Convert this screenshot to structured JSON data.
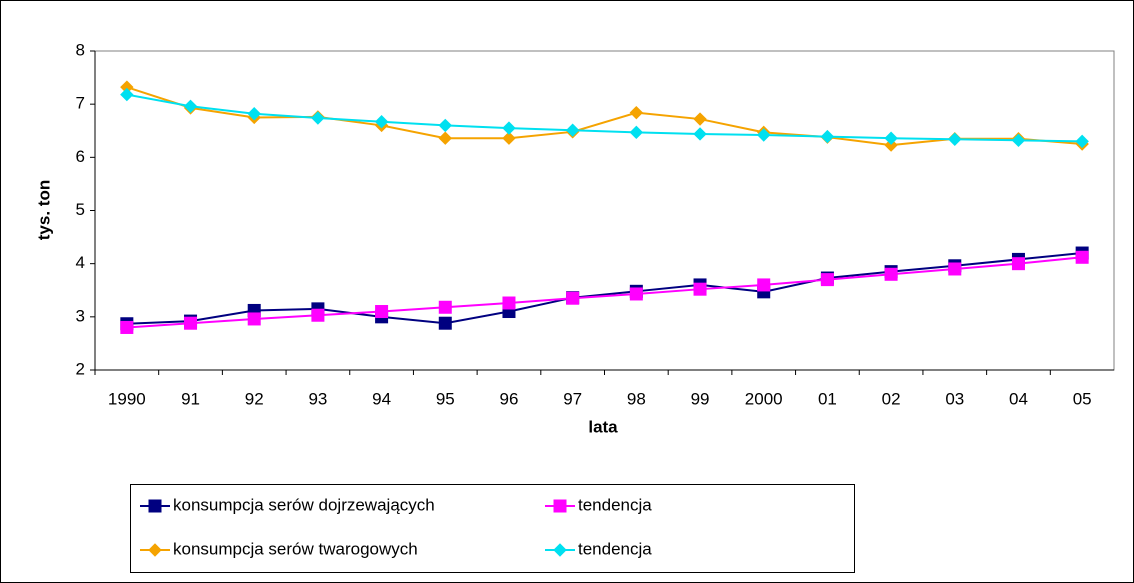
{
  "chart_data": {
    "type": "line",
    "xlabel": "lata",
    "ylabel": "tys. ton",
    "categories": [
      "1990",
      "91",
      "92",
      "93",
      "94",
      "95",
      "96",
      "97",
      "98",
      "99",
      "2000",
      "01",
      "02",
      "03",
      "04",
      "05"
    ],
    "ylim": [
      2,
      8
    ],
    "yticks": [
      2,
      3,
      4,
      5,
      6,
      7,
      8
    ],
    "grid": false,
    "series": [
      {
        "name": "konsumpcja serów dojrzewających",
        "color": "#000080",
        "marker": "square",
        "values": [
          2.87,
          2.92,
          3.12,
          3.15,
          3.0,
          2.88,
          3.1,
          3.36,
          3.48,
          3.6,
          3.47,
          3.73,
          3.85,
          3.96,
          4.08,
          4.2
        ]
      },
      {
        "name": "tendencja",
        "color": "#ff00ff",
        "marker": "square",
        "values": [
          2.8,
          2.88,
          2.96,
          3.03,
          3.1,
          3.18,
          3.26,
          3.35,
          3.43,
          3.52,
          3.6,
          3.7,
          3.8,
          3.9,
          4.0,
          4.12
        ]
      },
      {
        "name": "konsumpcja serów twarogowych",
        "color": "#f5a300",
        "marker": "diamond",
        "values": [
          7.32,
          6.93,
          6.75,
          6.76,
          6.6,
          6.36,
          6.36,
          6.48,
          6.84,
          6.72,
          6.47,
          6.38,
          6.23,
          6.35,
          6.35,
          6.25
        ]
      },
      {
        "name": "tendencja",
        "color": "#00e0f0",
        "marker": "diamond",
        "values": [
          7.18,
          6.96,
          6.82,
          6.74,
          6.67,
          6.6,
          6.55,
          6.51,
          6.47,
          6.44,
          6.42,
          6.39,
          6.36,
          6.34,
          6.32,
          6.3
        ]
      }
    ]
  }
}
